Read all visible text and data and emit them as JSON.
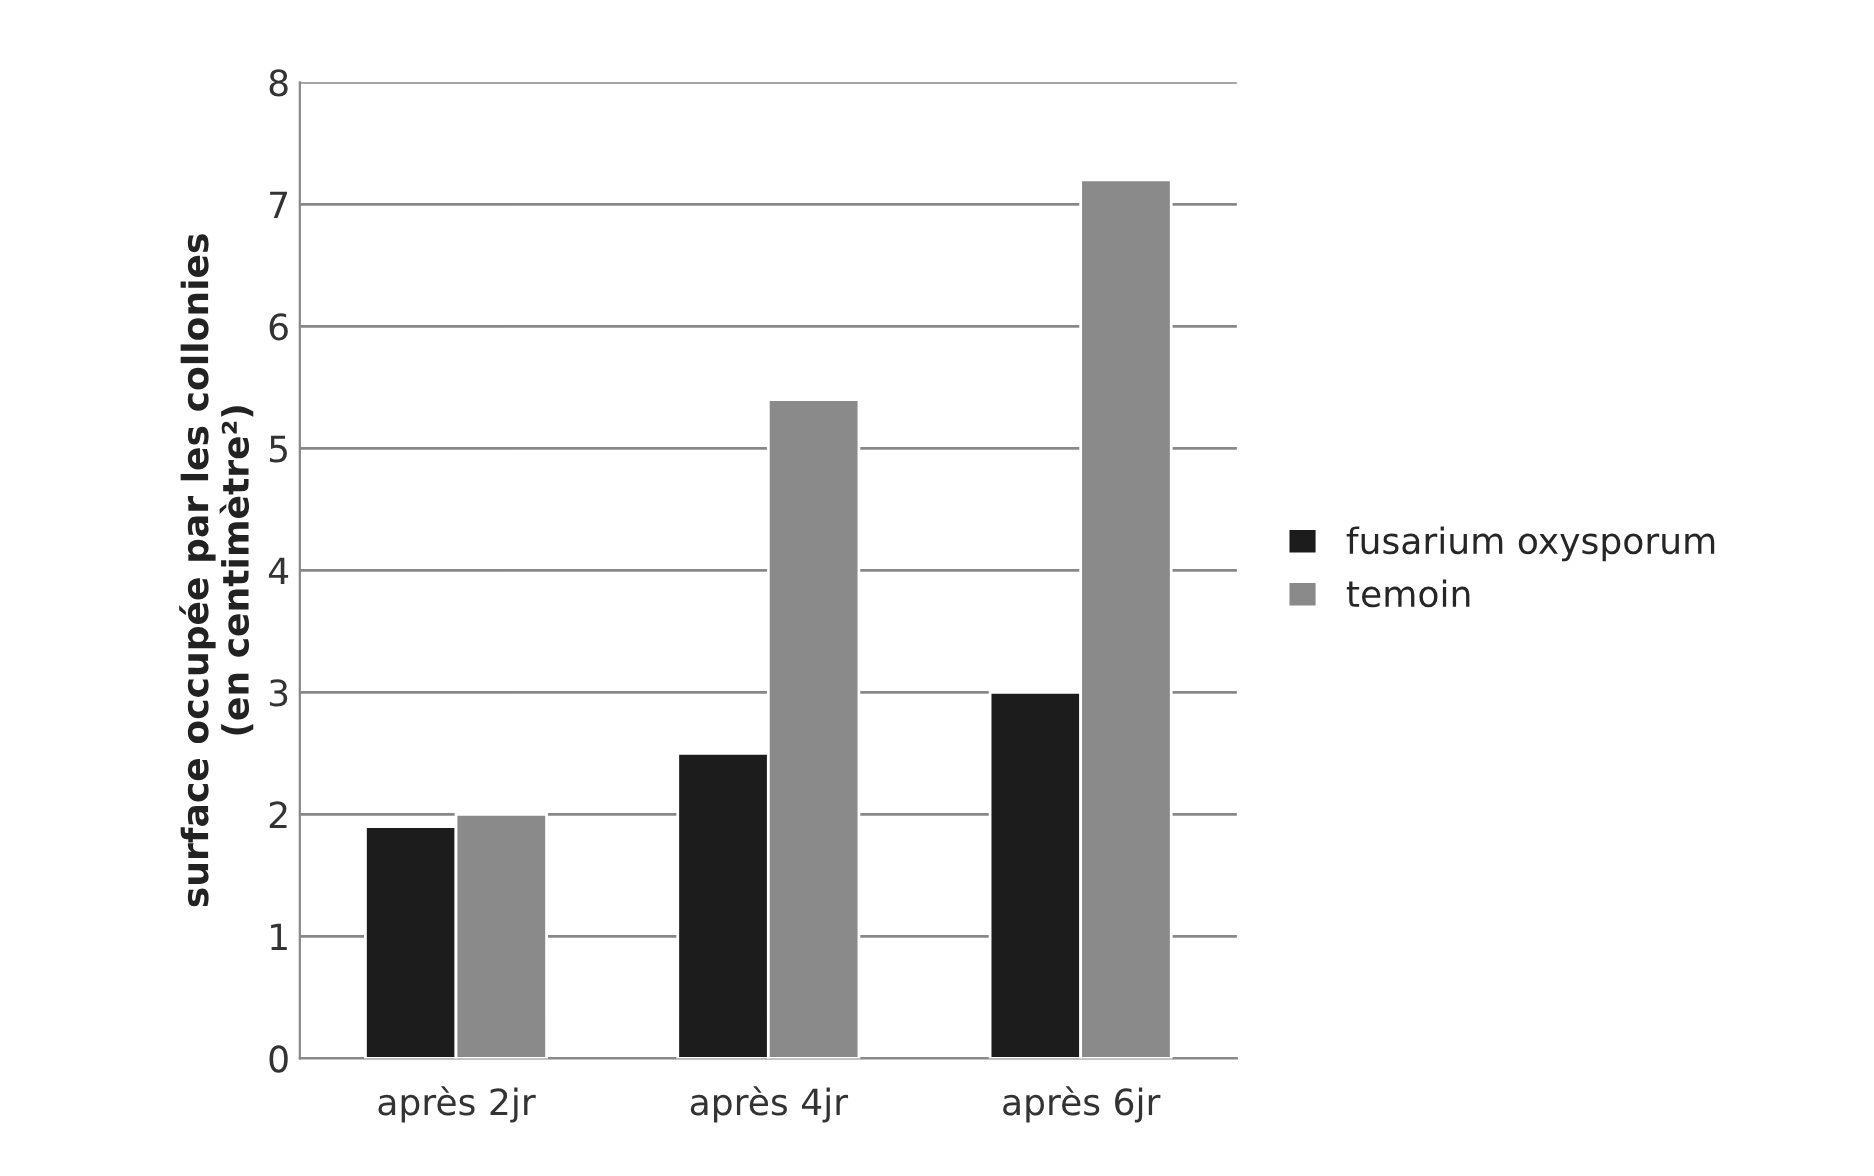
{
  "chart_data": {
    "type": "bar",
    "ylabel": "surface occupée par les collonies\n(en centimètre²)",
    "categories": [
      "après 2jr",
      "après 4jr",
      "après 6jr"
    ],
    "series": [
      {
        "name": "fusarium oxysporum",
        "color": "#1c1c1c",
        "values": [
          1.9,
          2.5,
          3.0
        ]
      },
      {
        "name": "temoin",
        "color": "#8a8a8a",
        "values": [
          2.0,
          5.4,
          7.2
        ]
      }
    ],
    "ylim": [
      0,
      8
    ],
    "yticks": [
      0,
      1,
      2,
      3,
      4,
      5,
      6,
      7,
      8
    ],
    "grid": "y",
    "legend": "right"
  }
}
